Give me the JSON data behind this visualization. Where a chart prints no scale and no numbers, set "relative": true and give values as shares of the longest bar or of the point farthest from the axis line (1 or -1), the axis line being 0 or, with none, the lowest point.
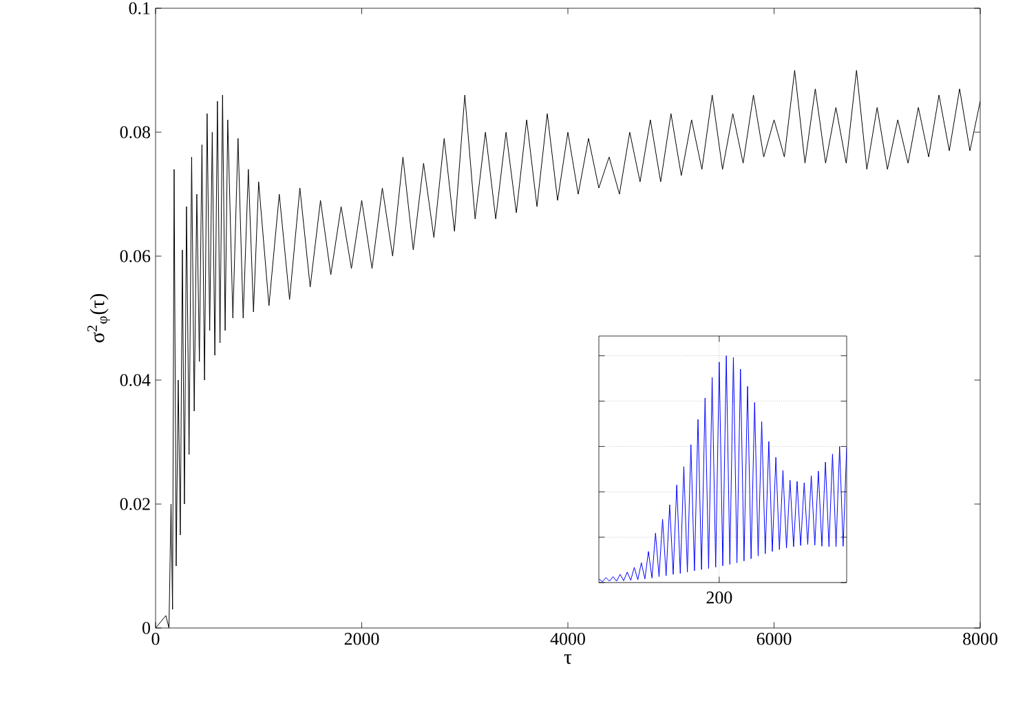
{
  "chart_data": [
    {
      "type": "line",
      "xlabel": "τ",
      "ylabel": "σ$^{2}$$_{φ}$(τ)",
      "xlim": [
        0,
        8000
      ],
      "ylim": [
        0,
        0.1
      ],
      "xticks": [
        0,
        2000,
        4000,
        6000,
        8000
      ],
      "yticks": [
        0,
        0.02,
        0.04,
        0.06,
        0.08,
        0.1
      ],
      "grid": false,
      "series": [
        {
          "color": "#000000",
          "x": [
            0,
            100,
            130,
            150,
            165,
            180,
            200,
            220,
            240,
            260,
            280,
            300,
            325,
            350,
            375,
            400,
            425,
            450,
            475,
            500,
            525,
            550,
            575,
            600,
            625,
            650,
            675,
            700,
            750,
            800,
            850,
            900,
            950,
            1000,
            1100,
            1200,
            1300,
            1400,
            1500,
            1600,
            1700,
            1800,
            1900,
            2000,
            2100,
            2200,
            2300,
            2400,
            2500,
            2600,
            2700,
            2800,
            2900,
            3000,
            3100,
            3200,
            3300,
            3400,
            3500,
            3600,
            3700,
            3800,
            3900,
            4000,
            4100,
            4200,
            4300,
            4400,
            4500,
            4600,
            4700,
            4800,
            4900,
            5000,
            5100,
            5200,
            5300,
            5400,
            5500,
            5600,
            5700,
            5800,
            5900,
            6000,
            6100,
            6200,
            6300,
            6400,
            6500,
            6600,
            6700,
            6800,
            6900,
            7000,
            7100,
            7200,
            7300,
            7400,
            7500,
            7600,
            7700,
            7800,
            7900,
            8000
          ],
          "values": [
            0,
            0.002,
            0,
            0.02,
            0.003,
            0.074,
            0.01,
            0.04,
            0.015,
            0.061,
            0.02,
            0.068,
            0.028,
            0.076,
            0.035,
            0.07,
            0.043,
            0.078,
            0.04,
            0.083,
            0.048,
            0.08,
            0.044,
            0.085,
            0.046,
            0.086,
            0.048,
            0.082,
            0.05,
            0.079,
            0.05,
            0.074,
            0.051,
            0.072,
            0.052,
            0.07,
            0.053,
            0.071,
            0.055,
            0.069,
            0.057,
            0.068,
            0.058,
            0.069,
            0.058,
            0.071,
            0.06,
            0.076,
            0.061,
            0.075,
            0.063,
            0.079,
            0.064,
            0.086,
            0.066,
            0.08,
            0.066,
            0.08,
            0.067,
            0.082,
            0.068,
            0.083,
            0.069,
            0.08,
            0.07,
            0.079,
            0.071,
            0.076,
            0.07,
            0.08,
            0.072,
            0.082,
            0.072,
            0.083,
            0.073,
            0.082,
            0.074,
            0.086,
            0.074,
            0.083,
            0.075,
            0.086,
            0.076,
            0.082,
            0.076,
            0.09,
            0.075,
            0.087,
            0.075,
            0.084,
            0.075,
            0.09,
            0.074,
            0.084,
            0.074,
            0.082,
            0.075,
            0.084,
            0.076,
            0.086,
            0.077,
            0.087,
            0.077,
            0.085
          ]
        }
      ]
    },
    {
      "type": "line",
      "relative": true,
      "grid": true,
      "tick_labels": false,
      "annotations": [
        "200"
      ],
      "categories": [
        null,
        null,
        null,
        null,
        null,
        null,
        null,
        null,
        null,
        null,
        null,
        null,
        null,
        null,
        null,
        null,
        null,
        null,
        null,
        null,
        null,
        null,
        null,
        null,
        null,
        null,
        null,
        null,
        null,
        null,
        null,
        null,
        null,
        null,
        null,
        null,
        null,
        null,
        null,
        null,
        null,
        null,
        null,
        null,
        null,
        null,
        null,
        null,
        null,
        null,
        null,
        null,
        null,
        null,
        null,
        null,
        null,
        null,
        null,
        null,
        null,
        null,
        null,
        null,
        null,
        null,
        null,
        null,
        null,
        null,
        null
      ],
      "series": [
        {
          "color": "#0000ff",
          "values": [
            0.016,
            0.004,
            0.022,
            0.006,
            0.026,
            0.006,
            0.036,
            0.008,
            0.046,
            0.01,
            0.067,
            0.012,
            0.087,
            0.016,
            0.137,
            0.02,
            0.218,
            0.026,
            0.279,
            0.03,
            0.343,
            0.036,
            0.43,
            0.04,
            0.511,
            0.046,
            0.608,
            0.052,
            0.719,
            0.057,
            0.814,
            0.062,
            0.905,
            0.068,
            0.972,
            0.074,
            1,
            0.08,
            0.992,
            0.087,
            0.941,
            0.095,
            0.865,
            0.105,
            0.794,
            0.117,
            0.709,
            0.127,
            0.622,
            0.137,
            0.552,
            0.145,
            0.495,
            0.152,
            0.451,
            0.158,
            0.446,
            0.163,
            0.44,
            0.168,
            0.471,
            0.165,
            0.491,
            0.16,
            0.531,
            0.158,
            0.566,
            0.158,
            0.6,
            0.16,
            0.596
          ]
        }
      ]
    }
  ]
}
